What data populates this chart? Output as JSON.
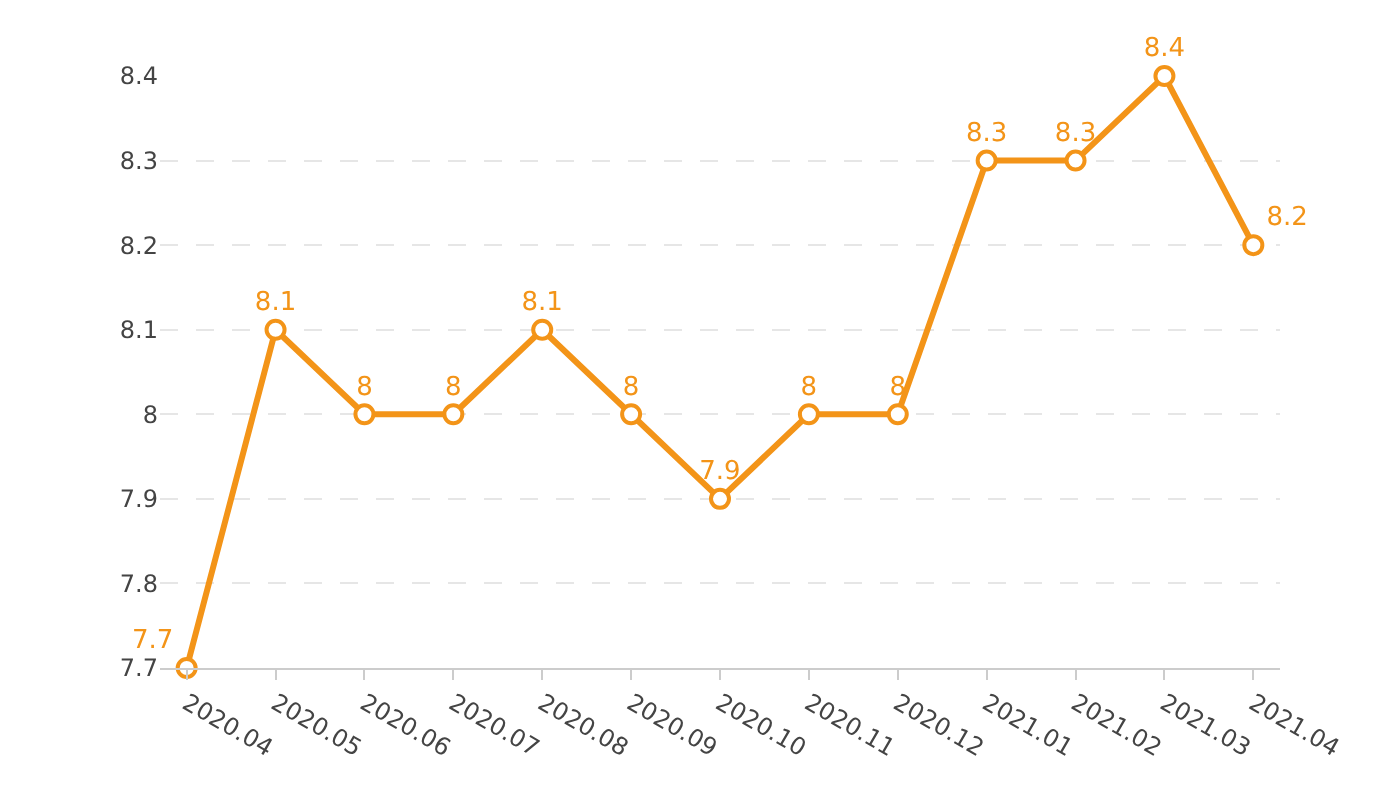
{
  "chart_data": {
    "type": "line",
    "categories": [
      "2020.04",
      "2020.05",
      "2020.06",
      "2020.07",
      "2020.08",
      "2020.09",
      "2020.10",
      "2020.11",
      "2020.12",
      "2021.01",
      "2021.02",
      "2021.03",
      "2021.04"
    ],
    "series": [
      {
        "color": "#f39418",
        "values": [
          7.7,
          8.1,
          8,
          8,
          8.1,
          8,
          7.9,
          8,
          8,
          8.3,
          8.3,
          8.4,
          8.2
        ]
      }
    ],
    "ylim": [
      7.7,
      8.4
    ],
    "yticks": [
      7.7,
      7.8,
      7.9,
      8,
      8.1,
      8.2,
      8.3,
      8.4
    ],
    "grid": "y",
    "marker": "circle",
    "line_style": "solid",
    "data_labels": true
  }
}
